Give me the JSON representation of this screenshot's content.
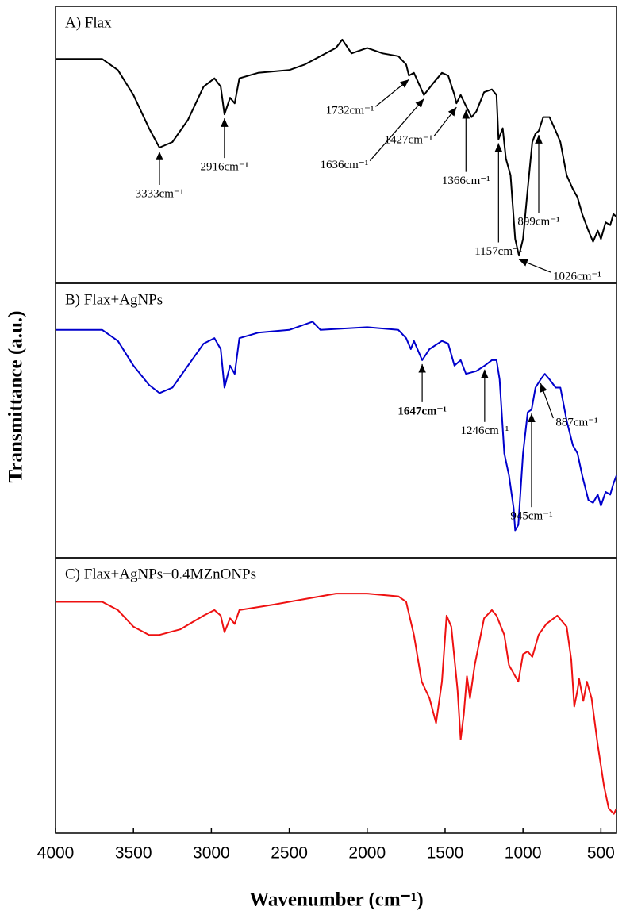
{
  "chart_data": {
    "type": "line",
    "xlabel": "Wavenumber (cm⁻¹)",
    "ylabel": "Transmittance (a.u.)",
    "xlim": [
      4000,
      400
    ],
    "xticks": [
      4000,
      3500,
      3000,
      2500,
      2000,
      1500,
      1000,
      500
    ],
    "ylim": [
      0,
      100
    ],
    "panels": [
      {
        "title": "A) Flax",
        "color": "#000000",
        "x": [
          4000,
          3800,
          3700,
          3600,
          3500,
          3400,
          3333,
          3250,
          3150,
          3050,
          2980,
          2940,
          2916,
          2880,
          2850,
          2820,
          2700,
          2500,
          2400,
          2300,
          2200,
          2160,
          2100,
          2000,
          1900,
          1800,
          1750,
          1732,
          1700,
          1636,
          1580,
          1520,
          1480,
          1440,
          1427,
          1400,
          1366,
          1330,
          1300,
          1250,
          1200,
          1170,
          1157,
          1130,
          1110,
          1080,
          1050,
          1026,
          1000,
          970,
          940,
          920,
          899,
          870,
          830,
          790,
          760,
          720,
          680,
          650,
          620,
          580,
          550,
          520,
          500,
          470,
          440,
          420,
          400
        ],
        "values": [
          81,
          81,
          81,
          77,
          68,
          56,
          49,
          51,
          59,
          71,
          74,
          71,
          61,
          67,
          65,
          74,
          76,
          77,
          79,
          82,
          85,
          88,
          83,
          85,
          83,
          82,
          79,
          75,
          76,
          68,
          72,
          76,
          75,
          68,
          65,
          68,
          64,
          60,
          62,
          69,
          70,
          68,
          52,
          56,
          45,
          39,
          16,
          10,
          16,
          34,
          51,
          54,
          55,
          60,
          60,
          55,
          51,
          39,
          34,
          31,
          25,
          19,
          15,
          19,
          16,
          22,
          21,
          25,
          24
        ],
        "annotations": [
          {
            "label": "3333cm⁻¹",
            "x": 3333
          },
          {
            "label": "2916cm⁻¹",
            "x": 2916
          },
          {
            "label": "1732cm⁻¹",
            "x": 1732
          },
          {
            "label": "1636cm⁻¹",
            "x": 1636
          },
          {
            "label": "1427cm⁻¹",
            "x": 1427
          },
          {
            "label": "1366cm⁻¹",
            "x": 1366
          },
          {
            "label": "1157cm⁻¹",
            "x": 1157
          },
          {
            "label": "899cm⁻¹",
            "x": 899
          },
          {
            "label": "1026cm⁻¹",
            "x": 1026
          }
        ]
      },
      {
        "title": "B) Flax+AgNPs",
        "color": "#0000cc",
        "x": [
          4000,
          3700,
          3600,
          3500,
          3400,
          3333,
          3250,
          3150,
          3050,
          2980,
          2940,
          2916,
          2880,
          2850,
          2820,
          2700,
          2500,
          2350,
          2300,
          2000,
          1800,
          1750,
          1720,
          1700,
          1647,
          1600,
          1520,
          1480,
          1440,
          1400,
          1366,
          1300,
          1246,
          1200,
          1170,
          1150,
          1120,
          1090,
          1060,
          1050,
          1030,
          1000,
          970,
          945,
          920,
          887,
          860,
          830,
          790,
          760,
          720,
          680,
          650,
          620,
          580,
          550,
          520,
          500,
          470,
          440,
          420,
          400
        ],
        "values": [
          83,
          83,
          79,
          70,
          63,
          60,
          62,
          70,
          78,
          80,
          76,
          62,
          70,
          67,
          80,
          82,
          83,
          86,
          83,
          84,
          83,
          80,
          76,
          79,
          72,
          76,
          79,
          78,
          70,
          72,
          67,
          68,
          70,
          72,
          72,
          65,
          38,
          30,
          18,
          10,
          12,
          38,
          53,
          54,
          62,
          65,
          67,
          65,
          62,
          62,
          50,
          41,
          38,
          30,
          21,
          20,
          23,
          19,
          24,
          23,
          27,
          30
        ],
        "annotations": [
          {
            "label": "1647cm⁻¹",
            "x": 1647,
            "bold": true
          },
          {
            "label": "1246cm⁻¹",
            "x": 1246
          },
          {
            "label": "945cm⁻¹",
            "x": 945
          },
          {
            "label": "887cm⁻¹",
            "x": 887
          }
        ]
      },
      {
        "title": "C) Flax+AgNPs+0.4MZnONPs",
        "color": "#ee1111",
        "x": [
          4000,
          3700,
          3600,
          3500,
          3400,
          3333,
          3200,
          3050,
          2980,
          2940,
          2916,
          2880,
          2850,
          2820,
          2600,
          2400,
          2200,
          2000,
          1800,
          1750,
          1700,
          1650,
          1600,
          1558,
          1520,
          1490,
          1460,
          1420,
          1400,
          1380,
          1360,
          1340,
          1310,
          1250,
          1200,
          1170,
          1120,
          1090,
          1060,
          1030,
          1000,
          970,
          940,
          900,
          850,
          780,
          720,
          690,
          671,
          650,
          640,
          613,
          590,
          560,
          520,
          480,
          450,
          417,
          400
        ],
        "values": [
          84,
          84,
          81,
          75,
          72,
          72,
          74,
          79,
          81,
          79,
          73,
          78,
          76,
          81,
          83,
          85,
          87,
          87,
          86,
          84,
          72,
          55,
          49,
          40,
          55,
          79,
          75,
          52,
          34,
          43,
          57,
          49,
          61,
          78,
          81,
          79,
          72,
          61,
          58,
          55,
          65,
          66,
          64,
          72,
          76,
          79,
          75,
          63,
          46,
          52,
          56,
          48,
          55,
          49,
          32,
          17,
          9,
          7,
          9
        ]
      }
    ]
  }
}
